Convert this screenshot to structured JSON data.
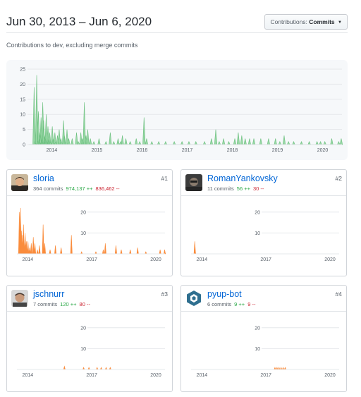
{
  "header": {
    "date_range": "Jun 30, 2013 – Jun 6, 2020",
    "dropdown": {
      "prefix": "Contributions:",
      "selected": "Commits"
    }
  },
  "subtitle": "Contributions to dev, excluding merge commits",
  "colors": {
    "main_fill": "#98d7a5",
    "main_stroke": "#6cc07f",
    "contrib_fill": "#fa8c3c",
    "link": "#0366d6",
    "add": "#28a745",
    "del": "#cb2431"
  },
  "chart_data": [
    {
      "type": "area",
      "title": "",
      "xlabel": "",
      "ylabel": "",
      "x_tick_labels": [
        "2014",
        "2015",
        "2016",
        "2017",
        "2018",
        "2019",
        "2020"
      ],
      "y_ticks": [
        0,
        5,
        10,
        15,
        20,
        25
      ],
      "ylim": [
        0,
        25
      ],
      "xlim": [
        "2013-06-30",
        "2020-06-06"
      ],
      "grid": true,
      "series": [
        {
          "points": [
            [
              "2013-07-14",
              0
            ],
            [
              "2013-08-04",
              0
            ],
            [
              "2013-08-11",
              19
            ],
            [
              "2013-08-18",
              1
            ],
            [
              "2013-08-25",
              0
            ],
            [
              "2013-09-01",
              23
            ],
            [
              "2013-09-08",
              1
            ],
            [
              "2013-09-15",
              11
            ],
            [
              "2013-09-22",
              2
            ],
            [
              "2013-09-29",
              4
            ],
            [
              "2013-10-06",
              9
            ],
            [
              "2013-10-13",
              2
            ],
            [
              "2013-10-20",
              14
            ],
            [
              "2013-10-27",
              8
            ],
            [
              "2013-11-03",
              3
            ],
            [
              "2013-11-10",
              2
            ],
            [
              "2013-11-17",
              10
            ],
            [
              "2013-11-24",
              1
            ],
            [
              "2013-12-01",
              6
            ],
            [
              "2013-12-08",
              2
            ],
            [
              "2013-12-15",
              4
            ],
            [
              "2013-12-22",
              1
            ],
            [
              "2014-01-05",
              6
            ],
            [
              "2014-01-12",
              2
            ],
            [
              "2014-01-26",
              4
            ],
            [
              "2014-02-02",
              1
            ],
            [
              "2014-02-16",
              3
            ],
            [
              "2014-03-02",
              5
            ],
            [
              "2014-03-16",
              2
            ],
            [
              "2014-04-06",
              8
            ],
            [
              "2014-04-13",
              3
            ],
            [
              "2014-05-04",
              5
            ],
            [
              "2014-05-18",
              2
            ],
            [
              "2014-06-15",
              2
            ],
            [
              "2014-07-20",
              4
            ],
            [
              "2014-08-03",
              1
            ],
            [
              "2014-08-24",
              4
            ],
            [
              "2014-09-07",
              2
            ],
            [
              "2014-09-21",
              14
            ],
            [
              "2014-10-05",
              3
            ],
            [
              "2014-10-19",
              5
            ],
            [
              "2014-11-09",
              2
            ],
            [
              "2014-12-07",
              1
            ],
            [
              "2015-01-18",
              2
            ],
            [
              "2015-03-15",
              1
            ],
            [
              "2015-04-19",
              4
            ],
            [
              "2015-05-17",
              1
            ],
            [
              "2015-06-21",
              2
            ],
            [
              "2015-07-12",
              1
            ],
            [
              "2015-07-26",
              3
            ],
            [
              "2015-08-23",
              2
            ],
            [
              "2015-09-27",
              1
            ],
            [
              "2015-11-15",
              2
            ],
            [
              "2015-12-13",
              1
            ],
            [
              "2016-01-17",
              9
            ],
            [
              "2016-02-07",
              2
            ],
            [
              "2016-03-20",
              1
            ],
            [
              "2016-05-15",
              1
            ],
            [
              "2016-07-10",
              1
            ],
            [
              "2016-09-18",
              1
            ],
            [
              "2016-11-20",
              1
            ],
            [
              "2017-01-15",
              1
            ],
            [
              "2017-03-12",
              1
            ],
            [
              "2017-05-21",
              1
            ],
            [
              "2017-07-16",
              2
            ],
            [
              "2017-08-20",
              5
            ],
            [
              "2017-09-17",
              1
            ],
            [
              "2017-10-22",
              2
            ],
            [
              "2017-12-03",
              1
            ],
            [
              "2018-01-21",
              2
            ],
            [
              "2018-02-18",
              4
            ],
            [
              "2018-03-18",
              3
            ],
            [
              "2018-04-15",
              2
            ],
            [
              "2018-05-20",
              2
            ],
            [
              "2018-06-24",
              2
            ],
            [
              "2018-08-19",
              2
            ],
            [
              "2018-10-21",
              2
            ],
            [
              "2018-12-16",
              2
            ],
            [
              "2019-01-20",
              1
            ],
            [
              "2019-02-24",
              3
            ],
            [
              "2019-03-31",
              1
            ],
            [
              "2019-05-12",
              1
            ],
            [
              "2019-07-14",
              1
            ],
            [
              "2019-09-15",
              1
            ],
            [
              "2019-11-17",
              1
            ],
            [
              "2019-12-15",
              1
            ],
            [
              "2020-01-19",
              1
            ],
            [
              "2020-03-15",
              2
            ],
            [
              "2020-05-10",
              1
            ],
            [
              "2020-05-31",
              2
            ]
          ]
        }
      ]
    },
    {
      "type": "area",
      "contributor": "sloria",
      "x_tick_labels": [
        "2014",
        "2017",
        "2020"
      ],
      "y_ticks": [
        10,
        20
      ],
      "ylim": [
        0,
        25
      ],
      "series": [
        {
          "points": [
            [
              "2013-08-11",
              20
            ],
            [
              "2013-09-01",
              22
            ],
            [
              "2013-09-15",
              11
            ],
            [
              "2013-10-06",
              9
            ],
            [
              "2013-10-20",
              14
            ],
            [
              "2013-11-03",
              3
            ],
            [
              "2013-11-17",
              10
            ],
            [
              "2013-12-08",
              6
            ],
            [
              "2014-01-05",
              6
            ],
            [
              "2014-02-02",
              3
            ],
            [
              "2014-03-02",
              5
            ],
            [
              "2014-04-06",
              8
            ],
            [
              "2014-05-04",
              5
            ],
            [
              "2014-06-15",
              2
            ],
            [
              "2014-07-20",
              4
            ],
            [
              "2014-09-21",
              14
            ],
            [
              "2014-10-19",
              5
            ],
            [
              "2015-01-18",
              2
            ],
            [
              "2015-04-19",
              4
            ],
            [
              "2015-07-26",
              3
            ],
            [
              "2016-01-17",
              9
            ],
            [
              "2016-07-10",
              1
            ],
            [
              "2017-03-12",
              1
            ],
            [
              "2017-07-16",
              2
            ],
            [
              "2017-08-20",
              5
            ],
            [
              "2018-02-18",
              4
            ],
            [
              "2018-05-20",
              2
            ],
            [
              "2018-10-21",
              2
            ],
            [
              "2019-02-24",
              3
            ],
            [
              "2019-07-14",
              1
            ],
            [
              "2020-03-15",
              2
            ],
            [
              "2020-05-31",
              2
            ]
          ]
        }
      ]
    },
    {
      "type": "area",
      "contributor": "RomanYankovsky",
      "x_tick_labels": [
        "2014",
        "2017",
        "2020"
      ],
      "y_ticks": [
        10,
        20
      ],
      "ylim": [
        0,
        25
      ],
      "series": [
        {
          "points": [
            [
              "2013-09-01",
              6
            ],
            [
              "2013-09-08",
              1
            ]
          ]
        }
      ]
    },
    {
      "type": "area",
      "contributor": "jschnurr",
      "x_tick_labels": [
        "2014",
        "2017",
        "2020"
      ],
      "y_ticks": [
        10,
        20
      ],
      "ylim": [
        0,
        25
      ],
      "series": [
        {
          "points": [
            [
              "2015-09-20",
              1.5
            ],
            [
              "2016-08-14",
              1
            ],
            [
              "2016-11-13",
              1
            ],
            [
              "2017-04-02",
              1
            ],
            [
              "2017-06-11",
              1
            ],
            [
              "2017-09-03",
              1
            ],
            [
              "2017-11-12",
              1
            ]
          ]
        }
      ]
    },
    {
      "type": "area",
      "contributor": "pyup-bot",
      "x_tick_labels": [
        "2014",
        "2017",
        "2020"
      ],
      "y_ticks": [
        10,
        20
      ],
      "ylim": [
        0,
        25
      ],
      "series": [
        {
          "points": [
            [
              "2017-06-04",
              1
            ],
            [
              "2017-07-09",
              1
            ],
            [
              "2017-08-13",
              1
            ],
            [
              "2017-09-17",
              1
            ],
            [
              "2017-10-22",
              1
            ],
            [
              "2017-11-26",
              1
            ]
          ]
        }
      ]
    }
  ],
  "contributors": [
    {
      "name": "sloria",
      "commits": "364 commits",
      "additions": "974,137 ++",
      "deletions": "836,462 --",
      "rank": "#1",
      "avatar": "sloria-avatar"
    },
    {
      "name": "RomanYankovsky",
      "commits": "11 commits",
      "additions": "56 ++",
      "deletions": "30 --",
      "rank": "#2",
      "avatar": "romanyankovsky-avatar"
    },
    {
      "name": "jschnurr",
      "commits": "7 commits",
      "additions": "120 ++",
      "deletions": "80 --",
      "rank": "#3",
      "avatar": "jschnurr-avatar"
    },
    {
      "name": "pyup-bot",
      "commits": "6 commits",
      "additions": "9 ++",
      "deletions": "9 --",
      "rank": "#4",
      "avatar": "pyup-bot-avatar"
    }
  ]
}
